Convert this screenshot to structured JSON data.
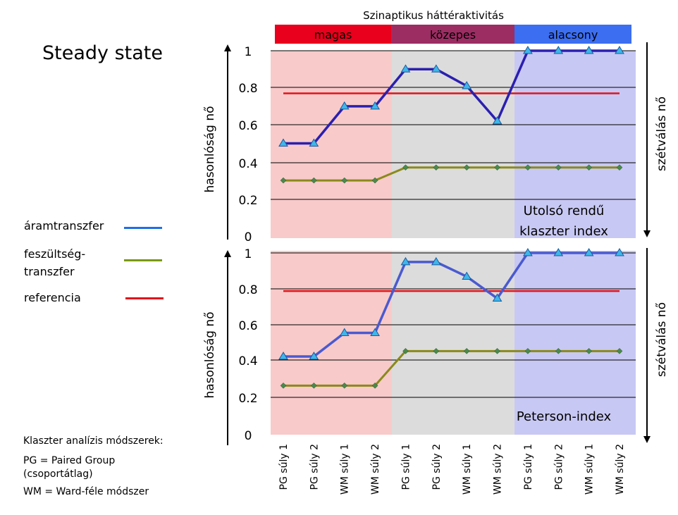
{
  "page_title": "Steady state",
  "header": {
    "label": "Szinaptikus háttéraktivitás"
  },
  "regions": [
    {
      "label": "magas",
      "band_color": "#e8001c",
      "bg_color": "#f8caca"
    },
    {
      "label": "közepes",
      "band_color": "#9c2d63",
      "bg_color": "#dcdcdc"
    },
    {
      "label": "alacsony",
      "band_color": "#3c6ef2",
      "bg_color": "#c8c8f4"
    }
  ],
  "legend": [
    {
      "label": "áramtranszfer",
      "color": "#1e6fe6"
    },
    {
      "label": "feszültség-\ntranszfer",
      "color": "#7a9a10"
    },
    {
      "label": "referencia",
      "color": "#e0141c"
    }
  ],
  "methods": {
    "title": "Klaszter analízis módszerek:",
    "pg": "PG = Paired Group\n(csoportátlag)",
    "wm": "WM = Ward-féle módszer"
  },
  "axis_labels": {
    "y_left": "hasonlóság nő",
    "y_right": "szétválás nő"
  },
  "chart_data": [
    {
      "type": "line",
      "title": "Utolsó rendű klaszter index",
      "title_lines": [
        "Utolsó rendű",
        "klaszter index"
      ],
      "ylim": [
        0,
        1
      ],
      "yticks": [
        "0",
        "0.2",
        "0.4",
        "0.6",
        "0.8",
        "1"
      ],
      "categories": [
        "PG súly 1",
        "PG súly 2",
        "WM súly 1",
        "WM súly 2",
        "PG súly 1",
        "PG súly 2",
        "WM súly 1",
        "WM súly 2",
        "PG súly 1",
        "PG súly 2",
        "WM súly 1",
        "WM súly 2"
      ],
      "series": [
        {
          "name": "áramtranszfer",
          "values": [
            0.5,
            0.5,
            0.7,
            0.7,
            0.9,
            0.9,
            0.81,
            0.62,
            1.0,
            1.0,
            1.0,
            1.0
          ]
        },
        {
          "name": "feszültségtranszfer",
          "values": [
            0.3,
            0.3,
            0.3,
            0.3,
            0.37,
            0.37,
            0.37,
            0.37,
            0.37,
            0.37,
            0.37,
            0.37
          ]
        },
        {
          "name": "referencia",
          "values": [
            0.77,
            0.77,
            0.77,
            0.77,
            0.77,
            0.77,
            0.77,
            0.77,
            0.77,
            0.77,
            0.77,
            0.77
          ]
        }
      ]
    },
    {
      "type": "line",
      "title": "Peterson-index",
      "title_lines": [
        "Peterson-index"
      ],
      "ylim": [
        0,
        1
      ],
      "yticks": [
        "0",
        "0.2",
        "0.4",
        "0.6",
        "0.8",
        "1"
      ],
      "categories": [
        "PG súly 1",
        "PG súly 2",
        "WM súly 1",
        "WM súly 2",
        "PG súly 1",
        "PG súly 2",
        "WM súly 1",
        "WM súly 2",
        "PG súly 1",
        "PG súly 2",
        "WM súly 1",
        "WM súly 2"
      ],
      "series": [
        {
          "name": "áramtranszfer",
          "values": [
            0.43,
            0.43,
            0.56,
            0.56,
            0.95,
            0.95,
            0.87,
            0.75,
            1.0,
            1.0,
            1.0,
            1.0
          ]
        },
        {
          "name": "feszültségtranszfer",
          "values": [
            0.27,
            0.27,
            0.27,
            0.27,
            0.46,
            0.46,
            0.46,
            0.46,
            0.46,
            0.46,
            0.46,
            0.46
          ]
        },
        {
          "name": "referencia",
          "values": [
            0.79,
            0.79,
            0.79,
            0.79,
            0.79,
            0.79,
            0.79,
            0.79,
            0.79,
            0.79,
            0.79,
            0.79
          ]
        }
      ]
    }
  ]
}
